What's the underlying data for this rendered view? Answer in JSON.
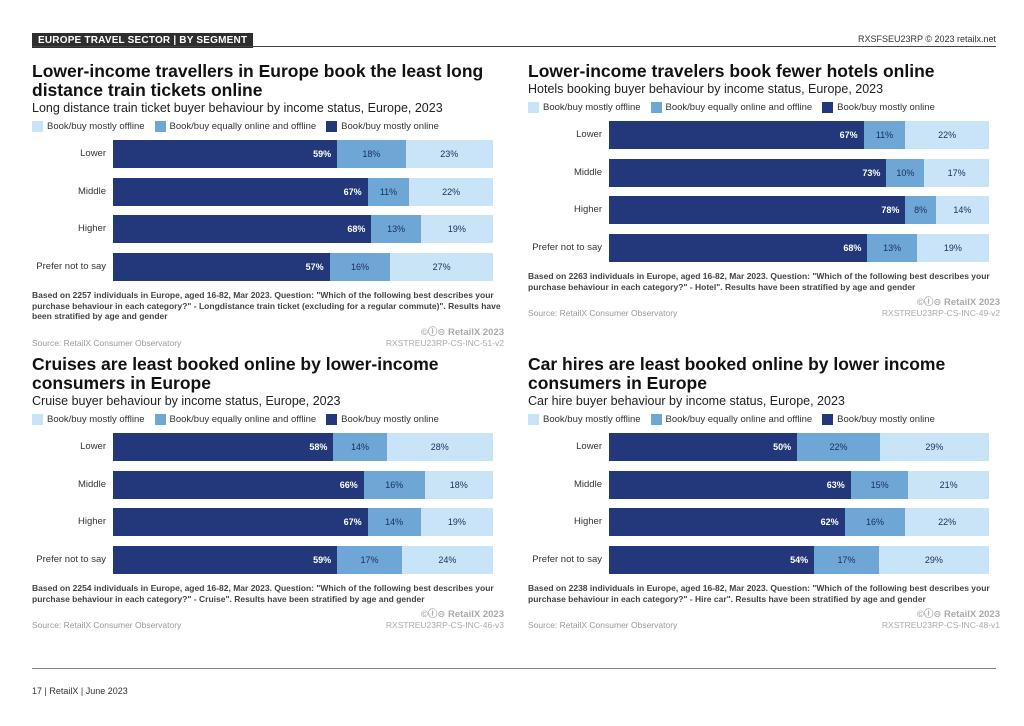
{
  "header": {
    "section_tag": "EUROPE TRAVEL SECTOR | BY SEGMENT",
    "report_code": "RXSFSEU23RP © 2023 retailx.net"
  },
  "footer": {
    "page_label": "17 | RetailX | June 2023"
  },
  "colors": {
    "online": "#23387a",
    "equal": "#6ea6d6",
    "offline": "#c9e3f7"
  },
  "legend_labels": [
    "Book/buy mostly offline",
    "Book/buy equally online and offline",
    "Book/buy mostly online"
  ],
  "panels": [
    {
      "title": "Lower-income travellers in Europe book the least long distance train tickets online",
      "subtitle": "Long distance train ticket buyer behaviour by income status, Europe, 2023",
      "note": "Based on 2257 individuals in Europe, aged 16-82, Mar 2023. Question: \"Which of the following best describes your purchase behaviour in each category?\" - Longdistance train ticket (excluding for a regular commute)\". Results have been stratified by age and gender",
      "source": "Source: RetailX Consumer Observatory",
      "brand": "©ⓘ⊝ RetailX 2023",
      "code": "RXSTREU23RP-CS-INC-51-v2"
    },
    {
      "title": "Lower-income travelers book fewer hotels online",
      "subtitle": "Hotels booking buyer behaviour by income status, Europe, 2023",
      "note": "Based on 2263 individuals in Europe, aged 16-82, Mar 2023. Question: \"Which of the following best describes your purchase behaviour in each category?\" - Hotel\". Results have been stratified by age and gender",
      "source": "Source: RetailX Consumer Observatory",
      "brand": "©ⓘ⊝ RetailX 2023",
      "code": "RXSTREU23RP-CS-INC-49-v2"
    },
    {
      "title": "Cruises are least booked online by lower-income consumers in Europe",
      "subtitle": "Cruise buyer behaviour by income status, Europe, 2023",
      "note": "Based on 2254 individuals in Europe, aged 16-82, Mar 2023. Question: \"Which of the following best describes your purchase behaviour in each category?\" - Cruise\". Results have been stratified by age and gender",
      "source": "Source: RetailX Consumer Observatory",
      "brand": "©ⓘ⊝ RetailX 2023",
      "code": "RXSTREU23RP-CS-INC-46-v3"
    },
    {
      "title": "Car hires are least booked online by lower income consumers in Europe",
      "subtitle": "Car hire buyer behaviour by income status, Europe, 2023",
      "note": "Based on 2238 individuals in Europe, aged 16-82, Mar 2023. Question: \"Which of the following best describes your purchase behaviour in each category?\" - Hire car\". Results have been stratified by age and gender",
      "source": "Source: RetailX Consumer Observatory",
      "brand": "©ⓘ⊝ RetailX 2023",
      "code": "RXSTREU23RP-CS-INC-48-v1"
    }
  ],
  "chart_data": [
    {
      "type": "bar",
      "stacked": true,
      "orientation": "horizontal",
      "categories": [
        "Lower",
        "Middle",
        "Higher",
        "Prefer not to say"
      ],
      "series": [
        {
          "name": "Book/buy mostly online",
          "values": [
            59,
            67,
            68,
            57
          ]
        },
        {
          "name": "Book/buy equally online and offline",
          "values": [
            18,
            11,
            13,
            16
          ]
        },
        {
          "name": "Book/buy mostly offline",
          "values": [
            23,
            22,
            19,
            27
          ]
        }
      ],
      "xlim": [
        0,
        100
      ]
    },
    {
      "type": "bar",
      "stacked": true,
      "orientation": "horizontal",
      "categories": [
        "Lower",
        "Middle",
        "Higher",
        "Prefer not to say"
      ],
      "series": [
        {
          "name": "Book/buy mostly online",
          "values": [
            67,
            73,
            78,
            68
          ]
        },
        {
          "name": "Book/buy equally online and offline",
          "values": [
            11,
            10,
            8,
            13
          ]
        },
        {
          "name": "Book/buy mostly offline",
          "values": [
            22,
            17,
            14,
            19
          ]
        }
      ],
      "xlim": [
        0,
        100
      ]
    },
    {
      "type": "bar",
      "stacked": true,
      "orientation": "horizontal",
      "categories": [
        "Lower",
        "Middle",
        "Higher",
        "Prefer not to say"
      ],
      "series": [
        {
          "name": "Book/buy mostly online",
          "values": [
            58,
            66,
            67,
            59
          ]
        },
        {
          "name": "Book/buy equally online and offline",
          "values": [
            14,
            16,
            14,
            17
          ]
        },
        {
          "name": "Book/buy mostly offline",
          "values": [
            28,
            18,
            19,
            24
          ]
        }
      ],
      "xlim": [
        0,
        100
      ]
    },
    {
      "type": "bar",
      "stacked": true,
      "orientation": "horizontal",
      "categories": [
        "Lower",
        "Middle",
        "Higher",
        "Prefer not to say"
      ],
      "series": [
        {
          "name": "Book/buy mostly online",
          "values": [
            50,
            63,
            62,
            54
          ]
        },
        {
          "name": "Book/buy equally online and offline",
          "values": [
            22,
            15,
            16,
            17
          ]
        },
        {
          "name": "Book/buy mostly offline",
          "values": [
            29,
            21,
            22,
            29
          ]
        }
      ],
      "xlim": [
        0,
        100
      ]
    }
  ]
}
